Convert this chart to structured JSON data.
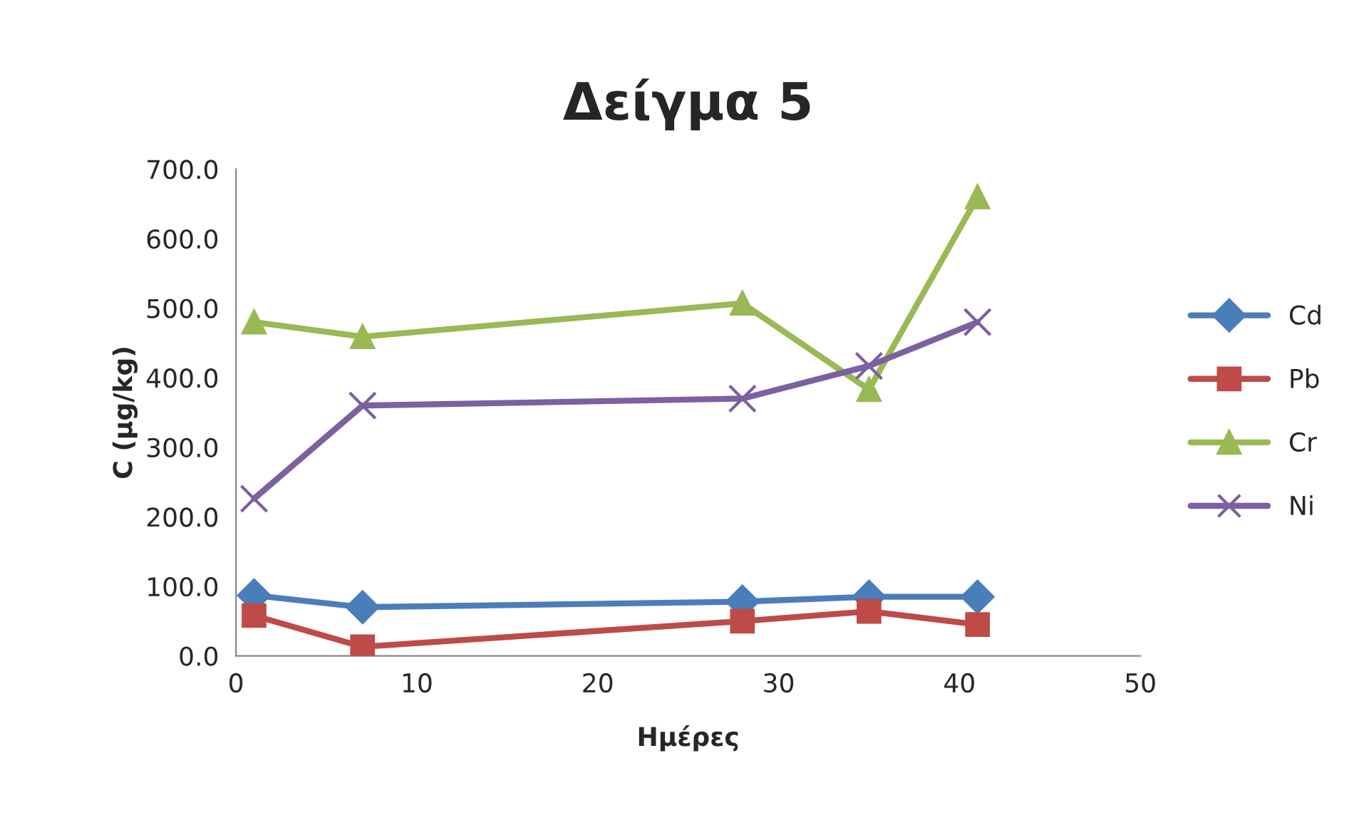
{
  "chart_data": {
    "type": "line",
    "title": "Δείγμα 5",
    "xlabel": "Ημέρες",
    "ylabel": "C (μg/kg)",
    "x": [
      1,
      7,
      28,
      35,
      41
    ],
    "series": [
      {
        "name": "Cd",
        "color": "#4a7ebb",
        "marker": "diamond",
        "values": [
          87,
          70,
          78,
          85,
          85
        ]
      },
      {
        "name": "Pb",
        "color": "#be4b48",
        "marker": "square",
        "values": [
          58,
          13,
          50,
          64,
          45
        ]
      },
      {
        "name": "Cr",
        "color": "#98b954",
        "marker": "triangle",
        "values": [
          480,
          459,
          507,
          383,
          660
        ]
      },
      {
        "name": "Ni",
        "color": "#7d60a0",
        "marker": "cross",
        "values": [
          226,
          360,
          370,
          417,
          480
        ]
      }
    ],
    "xlim": [
      0,
      50
    ],
    "xticks": [
      0,
      10,
      20,
      30,
      40,
      50
    ],
    "ylim": [
      0,
      700
    ],
    "yticks": [
      {
        "value": 0,
        "label": "0.0"
      },
      {
        "value": 100,
        "label": "100.0"
      },
      {
        "value": 200,
        "label": "200.0"
      },
      {
        "value": 300,
        "label": "300.0"
      },
      {
        "value": 400,
        "label": "400.0"
      },
      {
        "value": 500,
        "label": "500.0"
      },
      {
        "value": 600,
        "label": "600.0"
      },
      {
        "value": 700,
        "label": "700.0"
      }
    ],
    "grid": false,
    "legend": "right",
    "line_style": "solid"
  }
}
